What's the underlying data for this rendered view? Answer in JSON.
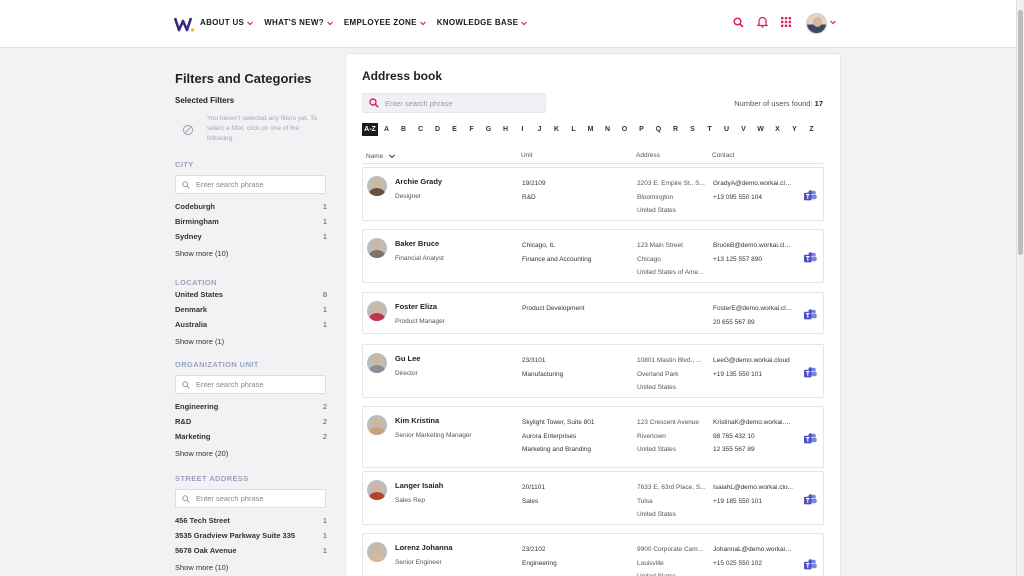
{
  "header": {
    "logo_label": "W",
    "nav": [
      "ABOUT US",
      "WHAT'S NEW?",
      "EMPLOYEE ZONE",
      "KNOWLEDGE BASE"
    ]
  },
  "sidebar": {
    "title": "Filters and Categories",
    "selected_title": "Selected Filters",
    "no_filter_text": "You haven't selected any filters yet. To select a filter, click on one of the following.",
    "search_placeholder": "Enter search phrase",
    "sections": [
      {
        "head": "CITY",
        "items": [
          {
            "label": "Codeburgh",
            "count": "1"
          },
          {
            "label": "Birmingham",
            "count": "1"
          },
          {
            "label": "Sydney",
            "count": "1"
          }
        ],
        "more": "Show more (10)"
      },
      {
        "head": "LOCATION",
        "items": [
          {
            "label": "United States",
            "count": "8"
          },
          {
            "label": "Denmark",
            "count": "1"
          },
          {
            "label": "Australia",
            "count": "1"
          }
        ],
        "more": "Show more (1)"
      },
      {
        "head": "ORGANIZATION UNIT",
        "items": [
          {
            "label": "Engineering",
            "count": "2"
          },
          {
            "label": "R&D",
            "count": "2"
          },
          {
            "label": "Marketing",
            "count": "2"
          }
        ],
        "more": "Show more (20)"
      },
      {
        "head": "STREET ADDRESS",
        "items": [
          {
            "label": "456 Tech Street",
            "count": "1"
          },
          {
            "label": "3535 Gradview Parkway Suite 335",
            "count": "1"
          },
          {
            "label": "5678 Oak Avenue",
            "count": "1"
          }
        ],
        "more": "Show more (10)"
      }
    ]
  },
  "main": {
    "title": "Address book",
    "search_placeholder": "Enter search phrase",
    "users_found_label": "Number of users found:",
    "users_found_count": "17",
    "alphabet": [
      "A-Z",
      "A",
      "B",
      "C",
      "D",
      "E",
      "F",
      "G",
      "H",
      "I",
      "J",
      "K",
      "L",
      "M",
      "N",
      "O",
      "P",
      "Q",
      "R",
      "S",
      "T",
      "U",
      "V",
      "W",
      "X",
      "Y",
      "Z"
    ],
    "columns": {
      "name": "Name",
      "unit": "Unit",
      "address": "Address",
      "contact": "Contact"
    },
    "rows": [
      {
        "name": "Archie Grady",
        "title": "Designer",
        "unit": [
          "19/2109",
          "R&D"
        ],
        "address": [
          "2203 E. Empire St., S...",
          "Bloomington",
          "United States"
        ],
        "contact": [
          "GradyA@demo.workai.clo...",
          "+13 095 550 104"
        ],
        "shirt": "#6b4f3b"
      },
      {
        "name": "Baker Bruce",
        "title": "Financial Analyst",
        "unit": [
          "Chicago, IL",
          "Finance and Accounting"
        ],
        "address": [
          "123 Main Street",
          "Chicago",
          "United States of Ame..."
        ],
        "contact": [
          "BruceB@demo.workai.clo...",
          "+13 125 557 890"
        ],
        "shirt": "#7d7367"
      },
      {
        "name": "Foster Eliza",
        "title": "Product Manager",
        "unit": [
          "Product Development"
        ],
        "address": [],
        "contact": [
          "FosterE@demo.workai.clo...",
          "20 655 567 89"
        ],
        "shirt": "#c23450"
      },
      {
        "name": "Gu Lee",
        "title": "Director",
        "unit": [
          "23/3101",
          "Manufacturing"
        ],
        "address": [
          "10801 Mastin Blvd., ...",
          "Overland Park",
          "United States"
        ],
        "contact": [
          "LeeG@demo.workai.cloud",
          "+19 135 550 101"
        ],
        "shirt": "#8a8f97"
      },
      {
        "name": "Kim Kristina",
        "title": "Senior Marketing Manager",
        "unit": [
          "Skylight Tower, Suite 801",
          "Aurora Enterprises",
          "Marketing and Branding"
        ],
        "address": [
          "123 Crescent Avenue",
          "Rivertown",
          "United States"
        ],
        "contact": [
          "KristinaK@demo.workai.cl...",
          "98 765 432 10",
          "12 355 567 89"
        ],
        "shirt": "#c9a27c"
      },
      {
        "name": "Langer Isaiah",
        "title": "Sales Rep",
        "unit": [
          "20/1101",
          "Sales"
        ],
        "address": [
          "7633 E. 63rd Place, S...",
          "Tulsa",
          "United States"
        ],
        "contact": [
          "IsaiahL@demo.workai.clo...",
          "+19 185 550 101"
        ],
        "shirt": "#b4432e"
      },
      {
        "name": "Lorenz Johanna",
        "title": "Senior Engineer",
        "unit": [
          "23/2102",
          "Engineering"
        ],
        "address": [
          "9900 Corporate Cam...",
          "Louisville",
          "United States"
        ],
        "contact": [
          "JohannaL@demo.workai.c...",
          "+15 025 550 102"
        ],
        "shirt": "#d9b79a"
      }
    ]
  }
}
